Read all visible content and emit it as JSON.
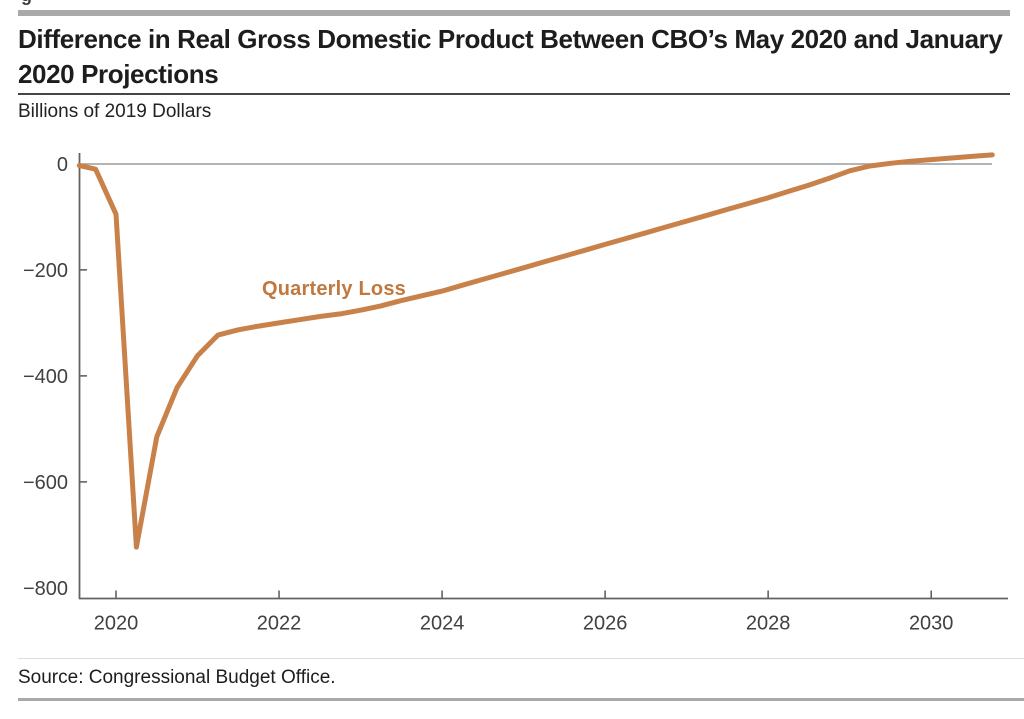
{
  "figure": {
    "cropped_label_fragment": "g"
  },
  "header": {
    "title_line1": "Difference in Real Gross Domestic Product Between CBO’s May 2020 and January",
    "title_line2": "2020 Projections",
    "unit_label": "Billions of 2019 Dollars"
  },
  "annotation": {
    "label": "Quarterly Loss"
  },
  "footer": {
    "source": "Source: Congressional Budget Office."
  },
  "colors": {
    "line": "#c9814a",
    "annotation_text": "#c0783f",
    "zero_line": "#999b9e",
    "axis_spine": "#636363",
    "tick_label": "#414141"
  },
  "chart_data": {
    "type": "line",
    "title": "Difference in Real Gross Domestic Product Between CBO’s May 2020 and January 2020 Projections",
    "ylabel": "Billions of 2019 Dollars",
    "xlabel": "",
    "xlim": [
      2019.546,
      2030.93
    ],
    "ylim": [
      -820,
      20.5
    ],
    "x_ticks": [
      2020,
      2022,
      2024,
      2026,
      2028,
      2030
    ],
    "y_ticks": [
      0,
      -200,
      -400,
      -600,
      -800
    ],
    "grid": "zero-line-only",
    "legend": "inline-annotation",
    "series": [
      {
        "name": "Quarterly Loss",
        "x": [
          2019.55,
          2019.75,
          2020.0,
          2020.25,
          2020.5,
          2020.75,
          2021.0,
          2021.25,
          2021.5,
          2021.75,
          2022.0,
          2022.25,
          2022.5,
          2022.75,
          2023.0,
          2023.25,
          2023.5,
          2023.75,
          2024.0,
          2024.25,
          2024.5,
          2024.75,
          2025.0,
          2025.25,
          2025.5,
          2025.75,
          2026.0,
          2026.25,
          2026.5,
          2026.75,
          2027.0,
          2027.25,
          2027.5,
          2027.75,
          2028.0,
          2028.25,
          2028.5,
          2028.75,
          2029.0,
          2029.25,
          2029.5,
          2029.75,
          2030.0,
          2030.25,
          2030.5,
          2030.75
        ],
        "values": [
          -3,
          -10,
          -95,
          -723,
          -515,
          -422,
          -362,
          -323,
          -313,
          -306,
          -300,
          -294,
          -288,
          -283,
          -276,
          -268,
          -258,
          -249,
          -240,
          -229,
          -218,
          -207,
          -196,
          -185,
          -174,
          -163,
          -152,
          -141,
          -130,
          -119,
          -108,
          -97,
          -86,
          -75,
          -64,
          -52,
          -40,
          -27,
          -13,
          -4,
          1,
          5,
          8,
          11,
          14,
          17
        ]
      }
    ]
  }
}
